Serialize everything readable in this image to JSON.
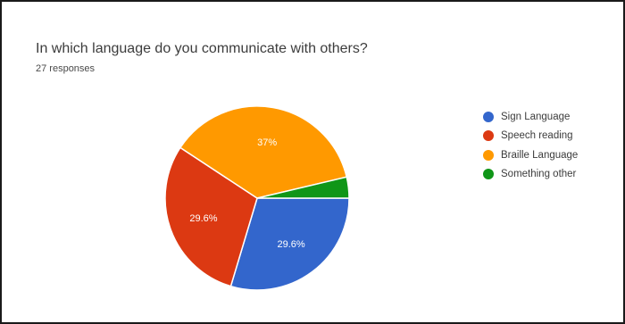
{
  "header": {
    "title": "In which language do you communicate with others?",
    "subtitle": "27 responses"
  },
  "chart_data": {
    "type": "pie",
    "title": "In which language do you communicate with others?",
    "subtitle": "27 responses",
    "legend_position": "right",
    "categories": [
      "Sign Language",
      "Speech reading",
      "Braille Language",
      "Something other"
    ],
    "values": [
      29.6,
      29.6,
      37,
      3.7
    ],
    "labels": [
      "29.6%",
      "29.6%",
      "37%",
      ""
    ],
    "colors": [
      "#3366cc",
      "#dc3912",
      "#ff9900",
      "#109618"
    ]
  },
  "legend": {
    "items": [
      {
        "label": "Sign Language",
        "color": "#3366cc"
      },
      {
        "label": "Speech reading",
        "color": "#dc3912"
      },
      {
        "label": "Braille Language",
        "color": "#ff9900"
      },
      {
        "label": "Something other",
        "color": "#109618"
      }
    ]
  }
}
